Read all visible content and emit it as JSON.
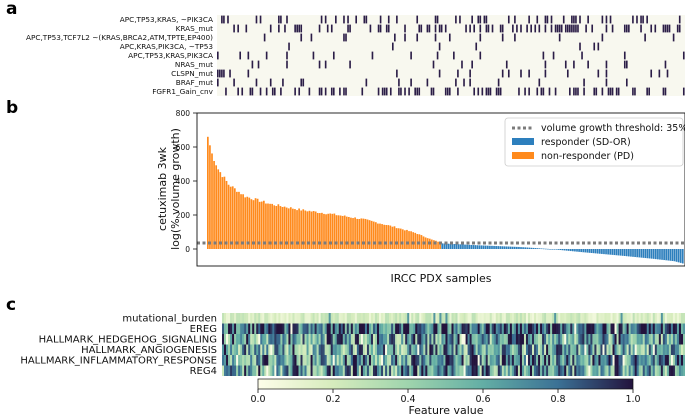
{
  "panels": {
    "a": "a",
    "b": "b",
    "c": "c"
  },
  "colors": {
    "responder": "#2d7fbd",
    "non_responder": "#ff8a1c",
    "mutation": "#2b1d47",
    "matrix_bg": "#f8f8ef",
    "threshold": "#7b7b7b"
  },
  "chart_data": [
    {
      "id": "a",
      "type": "heatmap",
      "title": "",
      "binary": true,
      "rows": [
        {
          "label": "APC,TP53,KRAS, ~PIK3CA",
          "freq": 0.23,
          "seed": 11
        },
        {
          "label": "KRAS_mut",
          "freq": 0.33,
          "seed": 23
        },
        {
          "label": "APC,TP53,TCF7L2 ~(KRAS,BRCA2,ATM,TPTE,EP400)",
          "freq": 0.09,
          "seed": 37
        },
        {
          "label": "APC,KRAS,PIK3CA, ~TP53",
          "freq": 0.06,
          "seed": 41
        },
        {
          "label": "APC,TP53,KRAS,PIK3CA",
          "freq": 0.07,
          "seed": 53
        },
        {
          "label": "NRAS_mut",
          "freq": 0.05,
          "seed": 67
        },
        {
          "label": "CLSPN_mut",
          "freq": 0.06,
          "seed": 71
        },
        {
          "label": "BRAF_mut",
          "freq": 0.09,
          "seed": 83
        },
        {
          "label": "FGFR1_Gain_cnv",
          "freq": 0.3,
          "seed": 97
        }
      ]
    },
    {
      "id": "b",
      "type": "bar",
      "title": "",
      "xlabel": "IRCC PDX samples",
      "ylabel_line1": "cetuximab 3wk",
      "ylabel_line2": "log(% volume growth)",
      "ylim": [
        -100,
        800
      ],
      "yticks": [
        "800",
        "600",
        "400",
        "200",
        "0"
      ],
      "ytick_values": [
        800,
        600,
        400,
        200,
        0
      ],
      "threshold": 35,
      "n_samples": 230,
      "n_non_responders": 113,
      "curve_non_responder": [
        [
          0,
          660
        ],
        [
          2,
          560
        ],
        [
          5,
          470
        ],
        [
          10,
          380
        ],
        [
          18,
          310
        ],
        [
          30,
          265
        ],
        [
          45,
          230
        ],
        [
          60,
          205
        ],
        [
          75,
          175
        ],
        [
          90,
          130
        ],
        [
          100,
          95
        ],
        [
          108,
          55
        ],
        [
          112,
          40
        ]
      ],
      "curve_responder": [
        [
          113,
          33
        ],
        [
          130,
          22
        ],
        [
          150,
          12
        ],
        [
          165,
          0
        ],
        [
          180,
          -18
        ],
        [
          200,
          -40
        ],
        [
          215,
          -58
        ],
        [
          225,
          -72
        ],
        [
          229,
          -85
        ]
      ],
      "legend": [
        {
          "label": "volume growth threshold: 35%",
          "kind": "threshold"
        },
        {
          "label": "responder (SD-OR)",
          "kind": "responder"
        },
        {
          "label": "non-responder (PD)",
          "kind": "non_responder"
        }
      ]
    },
    {
      "id": "c",
      "type": "heatmap",
      "title": "",
      "colorbar_label": "Feature value",
      "colorbar_ticks": [
        "0.0",
        "0.2",
        "0.4",
        "0.6",
        "0.8",
        "1.0"
      ],
      "colorbar_tick_values": [
        0.0,
        0.2,
        0.4,
        0.6,
        0.8,
        1.0
      ],
      "rows": [
        {
          "label": "mutational_burden",
          "mean": 0.18,
          "spread": 0.12,
          "seed": 5
        },
        {
          "label": "EREG",
          "mean": 0.8,
          "spread": 0.35,
          "seed": 13
        },
        {
          "label": "HALLMARK_HEDGEHOG_SIGNALING",
          "mean": 0.62,
          "spread": 0.4,
          "seed": 29
        },
        {
          "label": "HALLMARK_ANGIOGENESIS",
          "mean": 0.58,
          "spread": 0.4,
          "seed": 31
        },
        {
          "label": "HALLMARK_INFLAMMATORY_RESPONSE",
          "mean": 0.66,
          "spread": 0.4,
          "seed": 43
        },
        {
          "label": "REG4",
          "mean": 0.64,
          "spread": 0.42,
          "seed": 59
        }
      ]
    }
  ]
}
